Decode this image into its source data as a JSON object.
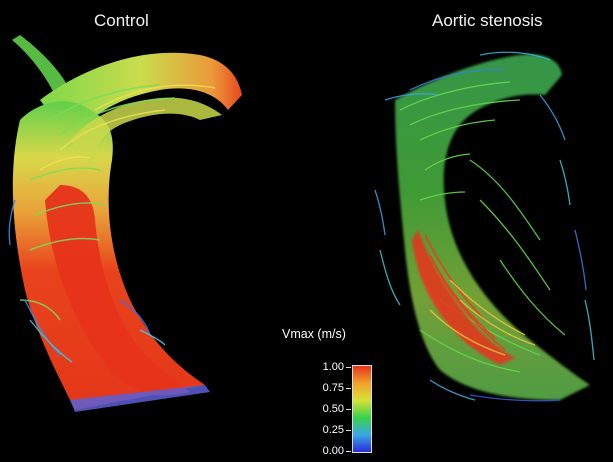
{
  "panels": {
    "left_title": "Control",
    "right_title": "Aortic stenosis"
  },
  "colorbar": {
    "title": "Vmax (m/s)",
    "ticks": [
      "1.00",
      "0.75",
      "0.50",
      "0.25",
      "0.00"
    ],
    "colors": [
      "#2b2bd8",
      "#3aa7e6",
      "#39d24a",
      "#d8e238",
      "#f2a12a",
      "#e8331c"
    ]
  },
  "colors": {
    "background": "#000000",
    "slow": "#2f5ad8",
    "mid": "#41cf52",
    "fast": "#e8331c"
  }
}
